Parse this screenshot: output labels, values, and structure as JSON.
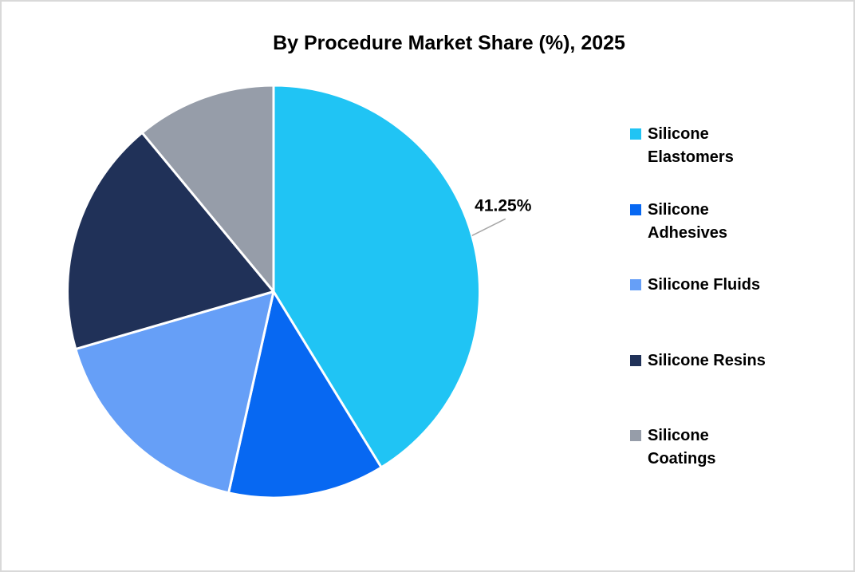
{
  "page": {
    "background_color": "#FFFFFF",
    "border_color": "#D9D9D9"
  },
  "title": "By Procedure Market Share (%), 2025",
  "chart_data": {
    "type": "pie",
    "title": "By Procedure Market Share (%), 2025",
    "unit": "%",
    "start_angle_deg": 0,
    "direction": "clockwise",
    "legend_position": "right",
    "leader_line_color": "#A6A6A6",
    "data_label_color": "#000000",
    "slices": [
      {
        "label": "Silicone Elastomers",
        "legend_label": "Silicone\nElastomers",
        "value": 41.25,
        "color": "#20C4F4",
        "data_label": "41.25%"
      },
      {
        "label": "Silicone Adhesives",
        "legend_label": "Silicone\nAdhesives",
        "value": 12.25,
        "color": "#0768F2"
      },
      {
        "label": "Silicone Fluids",
        "legend_label": "Silicone Fluids",
        "value": 17.0,
        "color": "#669FF7"
      },
      {
        "label": "Silicone Resins",
        "legend_label": "Silicone Resins",
        "value": 18.5,
        "color": "#203158"
      },
      {
        "label": "Silicone Coatings",
        "legend_label": "Silicone\nCoatings",
        "value": 11.0,
        "color": "#969DA9"
      }
    ]
  }
}
